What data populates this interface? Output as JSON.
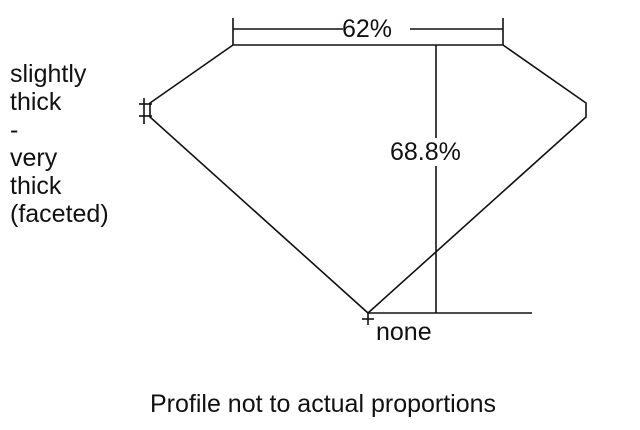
{
  "diagram": {
    "table_percentage": "62%",
    "depth_percentage": "68.8%",
    "girdle_label_lines": [
      "slightly",
      "thick",
      "-",
      "very",
      "thick",
      "(faceted)"
    ],
    "culet_label": "none",
    "caption": "Profile not to actual proportions",
    "line_color": "#111111"
  }
}
